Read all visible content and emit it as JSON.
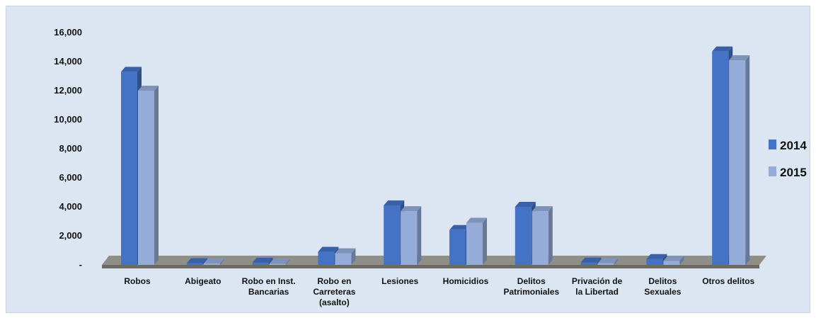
{
  "chart_data": {
    "type": "bar",
    "categories": [
      [
        "Robos"
      ],
      [
        "Abigeato"
      ],
      [
        "Robo en Inst.",
        "Bancarias"
      ],
      [
        "Robo en",
        "Carreteras",
        "(asalto)"
      ],
      [
        "Lesiones"
      ],
      [
        "Homicidios"
      ],
      [
        "Delitos",
        "Patrimoniales"
      ],
      [
        "Privación de",
        "la Libertad"
      ],
      [
        "Delitos",
        "Sexuales"
      ],
      [
        "Otros delitos"
      ]
    ],
    "series": [
      {
        "name": "2014",
        "color": "#4472c4",
        "values": [
          13300,
          120,
          150,
          900,
          4100,
          2400,
          4000,
          160,
          400,
          14700
        ]
      },
      {
        "name": "2015",
        "color": "#95acd9",
        "values": [
          12000,
          100,
          80,
          800,
          3700,
          2900,
          3700,
          120,
          280,
          14100
        ]
      }
    ],
    "y_ticks": [
      "-",
      "2,000",
      "4,000",
      "6,000",
      "8,000",
      "10,000",
      "12,000",
      "14,000",
      "16,000"
    ],
    "ylim": [
      0,
      16000
    ],
    "legend_position": "right",
    "grid": false
  }
}
